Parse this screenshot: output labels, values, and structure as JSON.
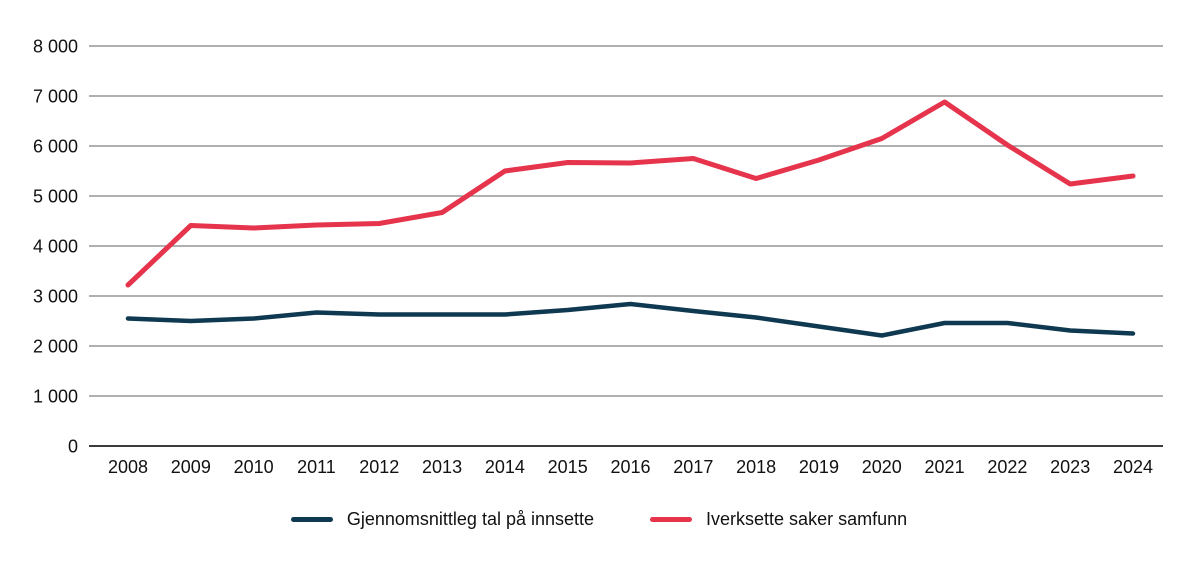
{
  "chart_data": {
    "type": "line",
    "title": "",
    "xlabel": "",
    "ylabel": "",
    "x": [
      "2008",
      "2009",
      "2010",
      "2011",
      "2012",
      "2013",
      "2014",
      "2015",
      "2016",
      "2017",
      "2018",
      "2019",
      "2020",
      "2021",
      "2022",
      "2023",
      "2024"
    ],
    "series": [
      {
        "name": "Gjennomsnittleg tal på innsette",
        "color": "#0E3951",
        "values": [
          2550,
          2500,
          2550,
          2670,
          2630,
          2630,
          2630,
          2720,
          2840,
          2700,
          2570,
          2390,
          2210,
          2460,
          2460,
          2310,
          2250
        ]
      },
      {
        "name": "Iverksette saker samfunn",
        "color": "#E5344C",
        "values": [
          3220,
          4410,
          4360,
          4420,
          4450,
          4670,
          5500,
          5670,
          5660,
          5750,
          5350,
          5720,
          6150,
          6880,
          6020,
          5240,
          5400
        ]
      }
    ],
    "ylim": [
      0,
      8000
    ],
    "ytick_step": 1000,
    "ytick_labels": [
      "0",
      "1 000",
      "2 000",
      "3 000",
      "4 000",
      "5 000",
      "6 000",
      "7 000",
      "8 000"
    ],
    "grid": "horizontal-only",
    "legend_position": "bottom-center",
    "colors": {
      "gridline": "#818181",
      "zero_axis": "#3c3c3c",
      "text": "#111111",
      "background": "#ffffff"
    }
  }
}
